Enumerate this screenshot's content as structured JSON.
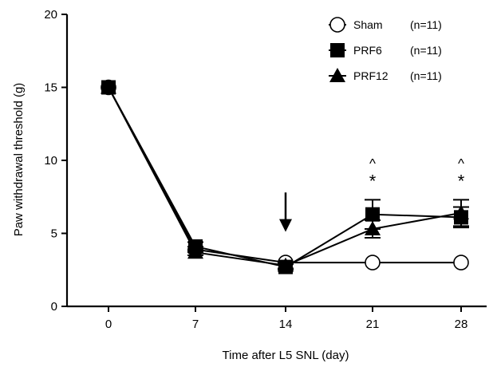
{
  "chart_data": {
    "type": "line",
    "xlabel": "Time after L5 SNL (day)",
    "ylabel": "Paw withdrawal threshold  (g)",
    "x": [
      0,
      7,
      14,
      21,
      28
    ],
    "x_ticks": [
      "0",
      "7",
      "14",
      "21",
      "28"
    ],
    "y_ticks": [
      "0",
      "5",
      "10",
      "15",
      "20"
    ],
    "ylim": [
      0,
      20
    ],
    "grid": false,
    "legend_position": "top-right",
    "series": [
      {
        "name": "Sham",
        "n_label": "(n=11)",
        "marker": "circle-open",
        "values": [
          15.0,
          3.9,
          3.0,
          3.0,
          3.0
        ],
        "errors": [
          0.1,
          0.2,
          0.1,
          0.1,
          0.1
        ]
      },
      {
        "name": "PRF6",
        "n_label": "(n=11)",
        "marker": "square-filled",
        "values": [
          15.0,
          4.1,
          2.7,
          6.3,
          6.1
        ],
        "errors": [
          0.1,
          0.3,
          0.2,
          1.0,
          0.7
        ]
      },
      {
        "name": "PRF12",
        "n_label": "(n=11)",
        "marker": "triangle-filled",
        "values": [
          15.0,
          3.7,
          2.8,
          5.3,
          6.4
        ],
        "errors": [
          0.1,
          0.2,
          0.2,
          0.6,
          0.9
        ]
      }
    ],
    "annotations": [
      {
        "type": "arrow",
        "x": 14,
        "y_top": 7.8,
        "y_bottom": 5.1
      },
      {
        "type": "text",
        "text": "^",
        "x": 21,
        "y": 9.8
      },
      {
        "type": "text",
        "text": "*",
        "x": 21,
        "y": 8.5
      },
      {
        "type": "text",
        "text": "^",
        "x": 28,
        "y": 9.8
      },
      {
        "type": "text",
        "text": "*",
        "x": 28,
        "y": 8.5
      }
    ]
  },
  "colors": {
    "stroke": "#000000",
    "background": "#ffffff"
  }
}
